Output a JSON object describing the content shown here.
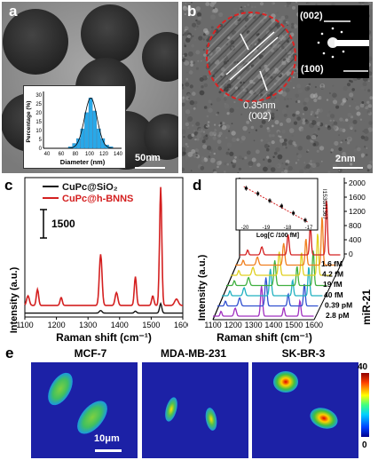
{
  "panels": {
    "a": {
      "letter": "a",
      "scalebar": "50nm",
      "hist": {
        "ylabel": "Percentage (%)",
        "xlabel": "Diameter (nm)",
        "yticks": [
          "0",
          "5",
          "10",
          "15",
          "20",
          "25",
          "30"
        ],
        "xticks": [
          "40",
          "60",
          "80",
          "100",
          "120",
          "140"
        ]
      }
    },
    "b": {
      "letter": "b",
      "spacing": "0.35nm",
      "plane": "(002)",
      "saed_002": "(002)",
      "saed_100": "(100)",
      "scalebar": "2nm"
    },
    "c": {
      "letter": "c",
      "legend": [
        "CuPc@SiO₂",
        "CuPc@h-BNNS"
      ],
      "scale_label": "1500",
      "ylabel": "Intensity (a.u.)",
      "xlabel": "Raman shift (cm⁻¹)",
      "xticks": [
        "1100",
        "1200",
        "1300",
        "1400",
        "1500",
        "1600"
      ]
    },
    "d": {
      "letter": "d",
      "ylabel": "Intensity (a.u.)",
      "xlabel": "Raman shift (cm⁻¹)",
      "xticks": [
        "1100",
        "1200",
        "1300",
        "1400",
        "1500",
        "1600"
      ],
      "right_axis_label": "Intensity",
      "right_ticks": [
        "2000",
        "1600",
        "1200",
        "800",
        "400",
        "0"
      ],
      "concentrations": [
        "1.6 fM",
        "4.2 fM",
        "19 fM",
        "40 fM",
        "0.39 pM",
        "2.8 pM"
      ],
      "series_axis_label": "miR-21",
      "inset_ylabel": "I1530/I1367",
      "inset_xlabel": "Log[C /100 fM]",
      "inset_xticks": [
        "-20",
        "-19",
        "-18",
        "-17"
      ]
    },
    "e": {
      "letter": "e",
      "cells": [
        "MCF-7",
        "MDA-MB-231",
        "SK-BR-3"
      ],
      "scalebar": "10μm",
      "colorbar_max": "40",
      "colorbar_min": "0"
    }
  },
  "chart_data": [
    {
      "type": "bar",
      "title": "",
      "xlabel": "Diameter (nm)",
      "ylabel": "Percentage (%)",
      "categories": [
        "70",
        "75",
        "80",
        "85",
        "90",
        "95",
        "100",
        "105",
        "110",
        "115",
        "120"
      ],
      "values": [
        1,
        3,
        6,
        12,
        22,
        31,
        23,
        12,
        6,
        2,
        1
      ],
      "ylim": [
        0,
        35
      ]
    },
    {
      "type": "line",
      "title": "",
      "xlabel": "Raman shift (cm⁻¹)",
      "ylabel": "Intensity (a.u.)",
      "x": [
        1100,
        1150,
        1200,
        1250,
        1290,
        1340,
        1400,
        1450,
        1500,
        1530,
        1545,
        1600
      ],
      "series": [
        {
          "name": "CuPc@SiO₂",
          "color": "#111111",
          "values": [
            0,
            10,
            20,
            10,
            30,
            80,
            20,
            60,
            40,
            300,
            40,
            0
          ]
        },
        {
          "name": "CuPc@h-BNNS",
          "color": "#d42020",
          "values": [
            300,
            400,
            500,
            350,
            450,
            1600,
            400,
            900,
            600,
            3700,
            500,
            200
          ]
        }
      ],
      "xlim": [
        1100,
        1600
      ]
    },
    {
      "type": "scatter",
      "title": "",
      "xlabel": "Log[C /100 fM]",
      "ylabel": "I1530/I1367",
      "x": [
        -20,
        -19.5,
        -19,
        -18.5,
        -18,
        -17.5
      ],
      "values": [
        1.9,
        1.75,
        1.55,
        1.4,
        1.2,
        1.0
      ]
    }
  ]
}
